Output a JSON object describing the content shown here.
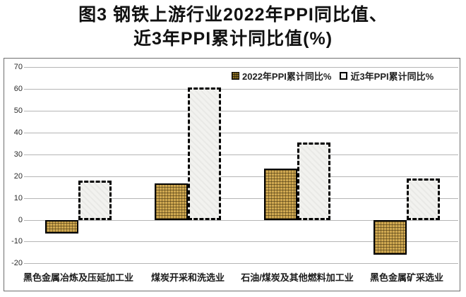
{
  "title": {
    "line1": "图3 钢铁上游行业2022年PPI同比值、",
    "line2": "近3年PPI累计同比值(%)"
  },
  "legend": {
    "items": [
      {
        "label": "2022年PPI累计同比%",
        "swatch": "dark-hatch-square"
      },
      {
        "label": "近3年PPI累计同比%",
        "swatch": "light-dashed-square"
      }
    ]
  },
  "chart_data": {
    "type": "bar",
    "title": "图3 钢铁上游行业2022年PPI同比值、近3年PPI累计同比值(%)",
    "categories": [
      "黑色金属冶炼及压延加工业",
      "煤炭开采和洗选业",
      "石油/煤炭及其他燃料加工业",
      "黑色金属矿采选业"
    ],
    "series": [
      {
        "name": "2022年PPI累计同比%",
        "values": [
          -6,
          17,
          23.5,
          -16
        ]
      },
      {
        "name": "近3年PPI累计同比%",
        "values": [
          18,
          61,
          35.5,
          19
        ]
      }
    ],
    "xlabel": "",
    "ylabel": "",
    "ylim": [
      -20,
      70
    ],
    "yticks": [
      70,
      60,
      50,
      40,
      30,
      20,
      10,
      0,
      -10,
      -20
    ],
    "grid": true,
    "legend_position": "top-inside"
  },
  "colors": {
    "bar_2022": "#cfa851",
    "bar_recent_fill": "#f2f2ef",
    "bar_border": "#000000",
    "gridline": "#b5b5b5",
    "chart_border": "#6f6f6f",
    "text": "#1a1a1a",
    "background": "#ffffff"
  }
}
